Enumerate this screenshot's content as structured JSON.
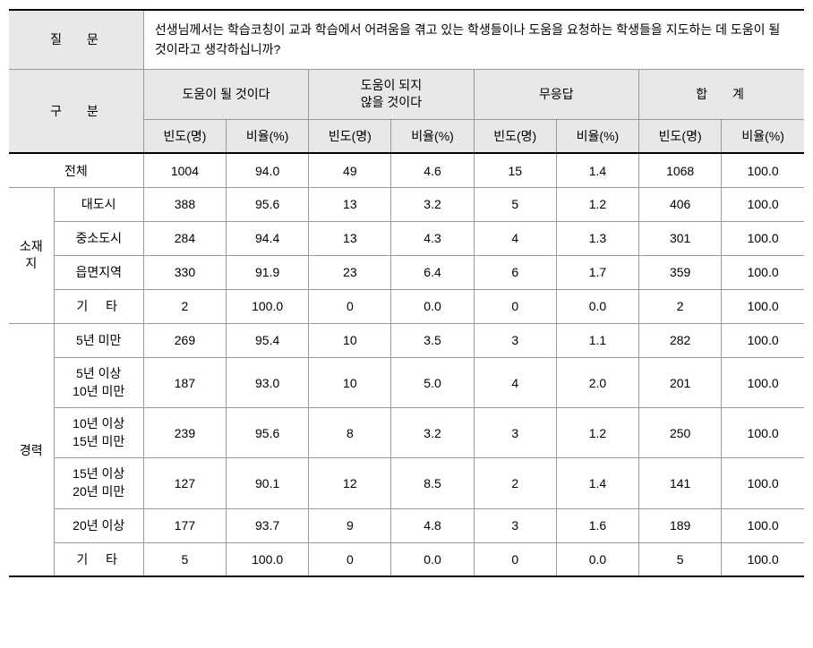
{
  "question": {
    "label": "질 문",
    "text": "선생님께서는 학습코칭이 교과 학습에서 어려움을 겪고 있는 학생들이나 도움을 요청하는 학생들을 지도하는 데 도움이 될 것이라고 생각하십니까?"
  },
  "categoryLabel": "구 분",
  "columnGroups": {
    "helpful": "도움이 될 것이다",
    "notHelpful": "도움이 되지\n않을 것이다",
    "noResponse": "무응답",
    "total": "합 계"
  },
  "subColumns": {
    "freq": "빈도(명)",
    "pct": "비율(%)"
  },
  "totalRow": {
    "label": "전체",
    "data": [
      "1004",
      "94.0",
      "49",
      "4.6",
      "15",
      "1.4",
      "1068",
      "100.0"
    ]
  },
  "locationGroup": {
    "label": "소재\n지",
    "rows": [
      {
        "label": "대도시",
        "data": [
          "388",
          "95.6",
          "13",
          "3.2",
          "5",
          "1.2",
          "406",
          "100.0"
        ]
      },
      {
        "label": "중소도시",
        "data": [
          "284",
          "94.4",
          "13",
          "4.3",
          "4",
          "1.3",
          "301",
          "100.0"
        ]
      },
      {
        "label": "읍면지역",
        "data": [
          "330",
          "91.9",
          "23",
          "6.4",
          "6",
          "1.7",
          "359",
          "100.0"
        ]
      },
      {
        "label": "기 타",
        "data": [
          "2",
          "100.0",
          "0",
          "0.0",
          "0",
          "0.0",
          "2",
          "100.0"
        ]
      }
    ]
  },
  "careerGroup": {
    "label": "경력",
    "rows": [
      {
        "label": "5년 미만",
        "data": [
          "269",
          "95.4",
          "10",
          "3.5",
          "3",
          "1.1",
          "282",
          "100.0"
        ]
      },
      {
        "label": "5년 이상\n10년 미만",
        "data": [
          "187",
          "93.0",
          "10",
          "5.0",
          "4",
          "2.0",
          "201",
          "100.0"
        ]
      },
      {
        "label": "10년 이상\n15년 미만",
        "data": [
          "239",
          "95.6",
          "8",
          "3.2",
          "3",
          "1.2",
          "250",
          "100.0"
        ]
      },
      {
        "label": "15년 이상\n20년 미만",
        "data": [
          "127",
          "90.1",
          "12",
          "8.5",
          "2",
          "1.4",
          "141",
          "100.0"
        ]
      },
      {
        "label": "20년 이상",
        "data": [
          "177",
          "93.7",
          "9",
          "4.8",
          "3",
          "1.6",
          "189",
          "100.0"
        ]
      },
      {
        "label": "기 타",
        "data": [
          "5",
          "100.0",
          "0",
          "0.0",
          "0",
          "0.0",
          "5",
          "100.0"
        ]
      }
    ]
  },
  "styling": {
    "headerBg": "#e8e8e8",
    "borderColor": "#999999",
    "thickBorderColor": "#000000",
    "fontFamily": "Malgun Gothic",
    "baseFontSize": 14,
    "tableWidth": 888,
    "colWidths": {
      "groupLabel": 50,
      "rowLabel": 100,
      "dataCol": 92
    }
  }
}
